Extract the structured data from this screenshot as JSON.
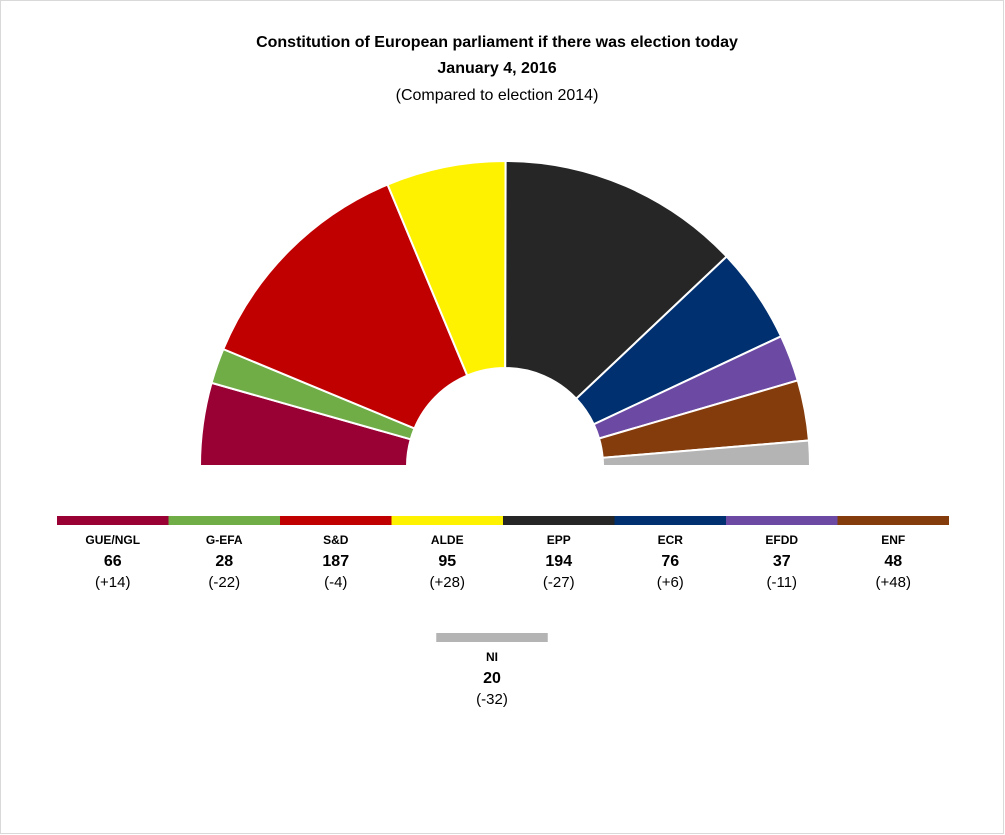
{
  "chart_data": {
    "type": "parliament",
    "title": "Constitution  of European parliament  if there was election today",
    "subtitle": "January  4, 2016",
    "note": "(Compared  to election 2014)",
    "categories": [
      "GUE/NGL",
      "G-EFA",
      "S&D",
      "ALDE",
      "EPP",
      "ECR",
      "EFDD",
      "ENF",
      "NI"
    ],
    "values": [
      66,
      28,
      187,
      95,
      194,
      76,
      37,
      48,
      20
    ],
    "changes": [
      "(+14)",
      "(-22)",
      "(-4)",
      "(+28)",
      "(-27)",
      "(+6)",
      "(-11)",
      "(+48)",
      "(-32)"
    ],
    "colors": [
      "#990033",
      "#70ad47",
      "#c00000",
      "#fff200",
      "#262626",
      "#003070",
      "#6c4aa4",
      "#843c0c",
      "#b4b4b4"
    ]
  }
}
